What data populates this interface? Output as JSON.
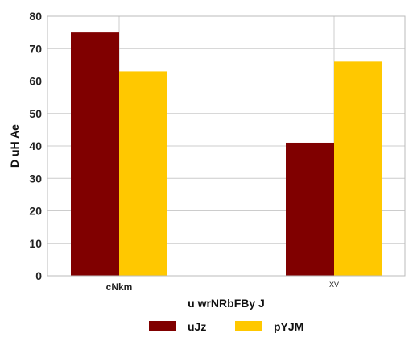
{
  "chart_data": {
    "type": "bar",
    "title": "",
    "categories": [
      "cNkm",
      "XV"
    ],
    "series": [
      {
        "name": "uJz",
        "values": [
          75,
          41
        ],
        "color": "#800000"
      },
      {
        "name": "pYJM",
        "values": [
          63,
          66
        ],
        "color": "#ffc800"
      }
    ],
    "xlabel": "u wrNRbFBy  J",
    "ylabel": "D uH Ae",
    "ylim": [
      0,
      80
    ],
    "yticks": [
      0,
      10,
      20,
      30,
      40,
      50,
      60,
      70,
      80
    ],
    "grid": true,
    "legend_position": "bottom"
  }
}
